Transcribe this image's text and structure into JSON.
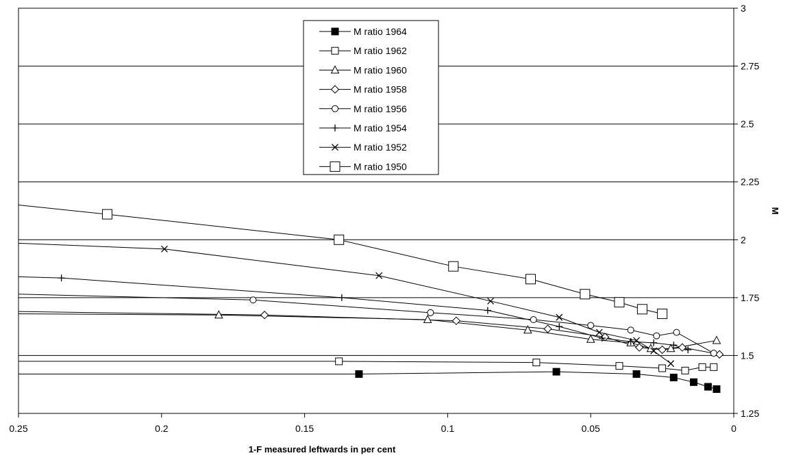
{
  "chart_data": {
    "type": "line",
    "title": "",
    "xlabel": "1-F measured leftwards in per cent",
    "ylabel": "M",
    "xlim": [
      0.25,
      0
    ],
    "x_reversed": true,
    "ylim": [
      1.25,
      3
    ],
    "y_axis_side": "right",
    "grid": "horizontal",
    "legend_position": "top-center",
    "x_ticks": [
      "0.25",
      "0.2",
      "0.15",
      "0.1",
      "0.05",
      "0"
    ],
    "y_ticks": [
      "1.25",
      "1.5",
      "1.75",
      "2",
      "2.25",
      "2.5",
      "2.75",
      "3"
    ],
    "series": [
      {
        "name": "M ratio 1964",
        "marker": "filled-square",
        "x": [
          0.131,
          0.062,
          0.034,
          0.021,
          0.014,
          0.009,
          0.006
        ],
        "y": [
          1.42,
          1.43,
          1.42,
          1.405,
          1.385,
          1.365,
          1.355
        ]
      },
      {
        "name": "M ratio 1962",
        "marker": "open-square",
        "x": [
          0.138,
          0.069,
          0.04,
          0.025,
          0.017,
          0.011,
          0.007
        ],
        "y": [
          1.475,
          1.47,
          1.455,
          1.445,
          1.435,
          1.45,
          1.45
        ]
      },
      {
        "name": "M ratio 1960",
        "marker": "triangle",
        "x": [
          0.18,
          0.107,
          0.072,
          0.05,
          0.036,
          0.029,
          0.022,
          0.006
        ],
        "y": [
          1.675,
          1.655,
          1.61,
          1.57,
          1.555,
          1.53,
          1.53,
          1.565
        ]
      },
      {
        "name": "M ratio 1958",
        "marker": "diamond",
        "x": [
          0.164,
          0.097,
          0.065,
          0.045,
          0.033,
          0.025,
          0.018,
          0.005
        ],
        "y": [
          1.675,
          1.65,
          1.615,
          1.58,
          1.535,
          1.525,
          1.535,
          1.505
        ]
      },
      {
        "name": "M ratio 1956",
        "marker": "circle",
        "x": [
          0.168,
          0.106,
          0.07,
          0.05,
          0.036,
          0.027,
          0.02,
          0.007
        ],
        "y": [
          1.74,
          1.685,
          1.655,
          1.63,
          1.61,
          1.585,
          1.6,
          1.51
        ]
      },
      {
        "name": "M ratio 1954",
        "marker": "plus",
        "x": [
          0.235,
          0.137,
          0.086,
          0.061,
          0.046,
          0.036,
          0.028,
          0.021,
          0.016
        ],
        "y": [
          1.835,
          1.75,
          1.695,
          1.625,
          1.575,
          1.56,
          1.555,
          1.545,
          1.525
        ]
      },
      {
        "name": "M ratio 1952",
        "marker": "x",
        "x": [
          0.199,
          0.124,
          0.085,
          0.061,
          0.047,
          0.034,
          0.028,
          0.022
        ],
        "y": [
          1.96,
          1.845,
          1.735,
          1.665,
          1.6,
          1.565,
          1.52,
          1.465
        ]
      },
      {
        "name": "M ratio 1950",
        "marker": "large-open-square",
        "x": [
          0.219,
          0.138,
          0.098,
          0.071,
          0.052,
          0.04,
          0.032,
          0.025
        ],
        "y": [
          2.11,
          2.0,
          1.885,
          1.83,
          1.765,
          1.73,
          1.7,
          1.68
        ]
      }
    ],
    "edge_trend_lines": [
      {
        "series": "M ratio 1950",
        "y_at_left_edge": 2.15
      },
      {
        "series": "M ratio 1952",
        "y_at_left_edge": 1.985
      },
      {
        "series": "M ratio 1954",
        "y_at_left_edge": 1.84
      },
      {
        "series": "M ratio 1956",
        "y_at_left_edge": 1.765
      },
      {
        "series": "M ratio 1958",
        "y_at_left_edge": 1.69
      },
      {
        "series": "M ratio 1960",
        "y_at_left_edge": 1.68
      },
      {
        "series": "M ratio 1962",
        "y_at_left_edge": 1.475
      },
      {
        "series": "M ratio 1964",
        "y_at_left_edge": 1.42
      }
    ],
    "colors": {
      "background": "#ffffff",
      "ink": "#000000"
    }
  }
}
